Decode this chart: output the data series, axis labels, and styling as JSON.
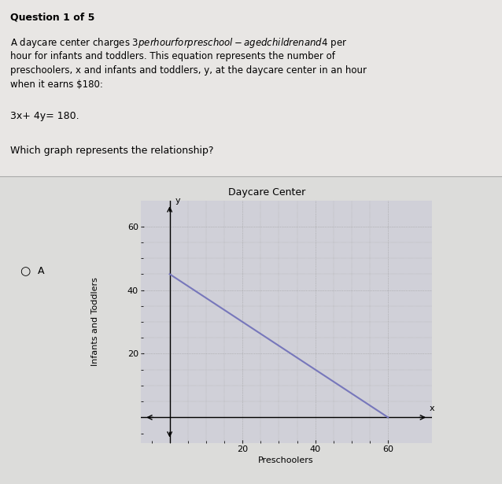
{
  "title": "Daycare Center",
  "xlabel": "Preschoolers",
  "ylabel": "Infants and Toddlers",
  "x_intercept": 60,
  "y_intercept": 45,
  "xlim": [
    -8,
    72
  ],
  "ylim": [
    -8,
    68
  ],
  "xticks": [
    20,
    40,
    60
  ],
  "yticks": [
    20,
    40,
    60
  ],
  "line_color": "#7777bb",
  "line_width": 1.5,
  "graph_bg_color": "#d0d0d8",
  "graph_right_bg": "#e8e4e4",
  "grid_color": "#999999",
  "title_fontsize": 9,
  "label_fontsize": 8,
  "tick_fontsize": 8,
  "question_text": "Question 1 of 5",
  "problem_text_line1": "A daycare center charges $3 per hour for preschool-aged children and $4 per",
  "problem_text_line2": "hour for infants and toddlers. This equation represents the number of",
  "problem_text_line3": "preschoolers, x and infants and toddlers, y, at the daycare center in an hour",
  "problem_text_line4": "when it earns $180:",
  "equation_text": "3x+ 4y= 180.",
  "which_graph_text": "Which graph represents the relationship?",
  "fig_bg_color": "#c8c8c8",
  "text_area_bg": "#e0dede",
  "graph_area_bg": "#dcdcdc"
}
